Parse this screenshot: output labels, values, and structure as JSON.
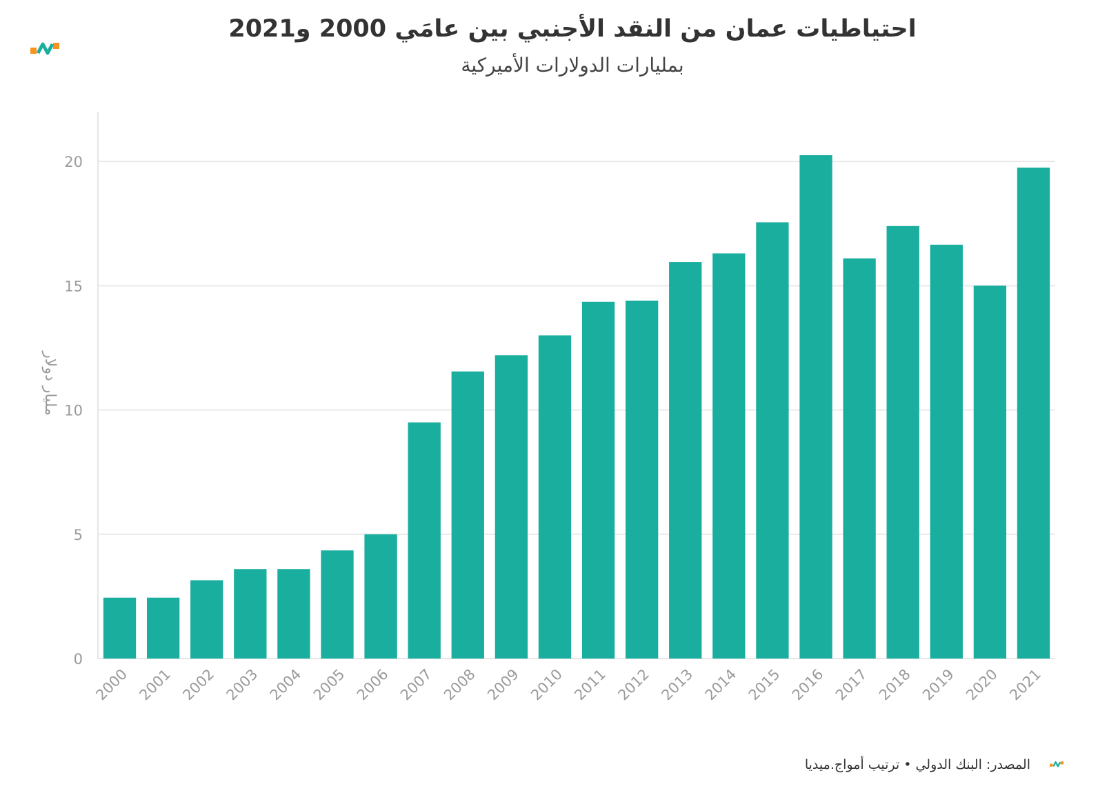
{
  "header": {
    "title": "احتياطيات عمان من النقد الأجنبي بين عامَي 2000 و2021",
    "subtitle": "بمليارات الدولارات الأميركية"
  },
  "footer": {
    "source": "المصدر: البنك الدولي • ترتيب أمواج.ميديا"
  },
  "brand": {
    "logo_icon": "amwaj-logo-icon",
    "orange": "#f7941d",
    "teal": "#1aae9f"
  },
  "chart_data": {
    "type": "bar",
    "title": "احتياطيات عمان من النقد الأجنبي بين عامَي 2000 و2021",
    "subtitle": "بمليارات الدولارات الأميركية",
    "xlabel": "",
    "ylabel": "مليار دولار",
    "ylim": [
      0,
      22
    ],
    "yticks": [
      0,
      5,
      10,
      15,
      20
    ],
    "grid": true,
    "bar_color": "#1aae9f",
    "categories": [
      "2000",
      "2001",
      "2002",
      "2003",
      "2004",
      "2005",
      "2006",
      "2007",
      "2008",
      "2009",
      "2010",
      "2011",
      "2012",
      "2013",
      "2014",
      "2015",
      "2016",
      "2017",
      "2018",
      "2019",
      "2020",
      "2021"
    ],
    "values": [
      2.45,
      2.45,
      3.15,
      3.6,
      3.6,
      4.35,
      5.0,
      9.5,
      11.55,
      12.2,
      13.0,
      14.35,
      14.4,
      15.95,
      16.3,
      17.55,
      20.25,
      16.1,
      17.4,
      16.65,
      15.0,
      19.75
    ]
  }
}
